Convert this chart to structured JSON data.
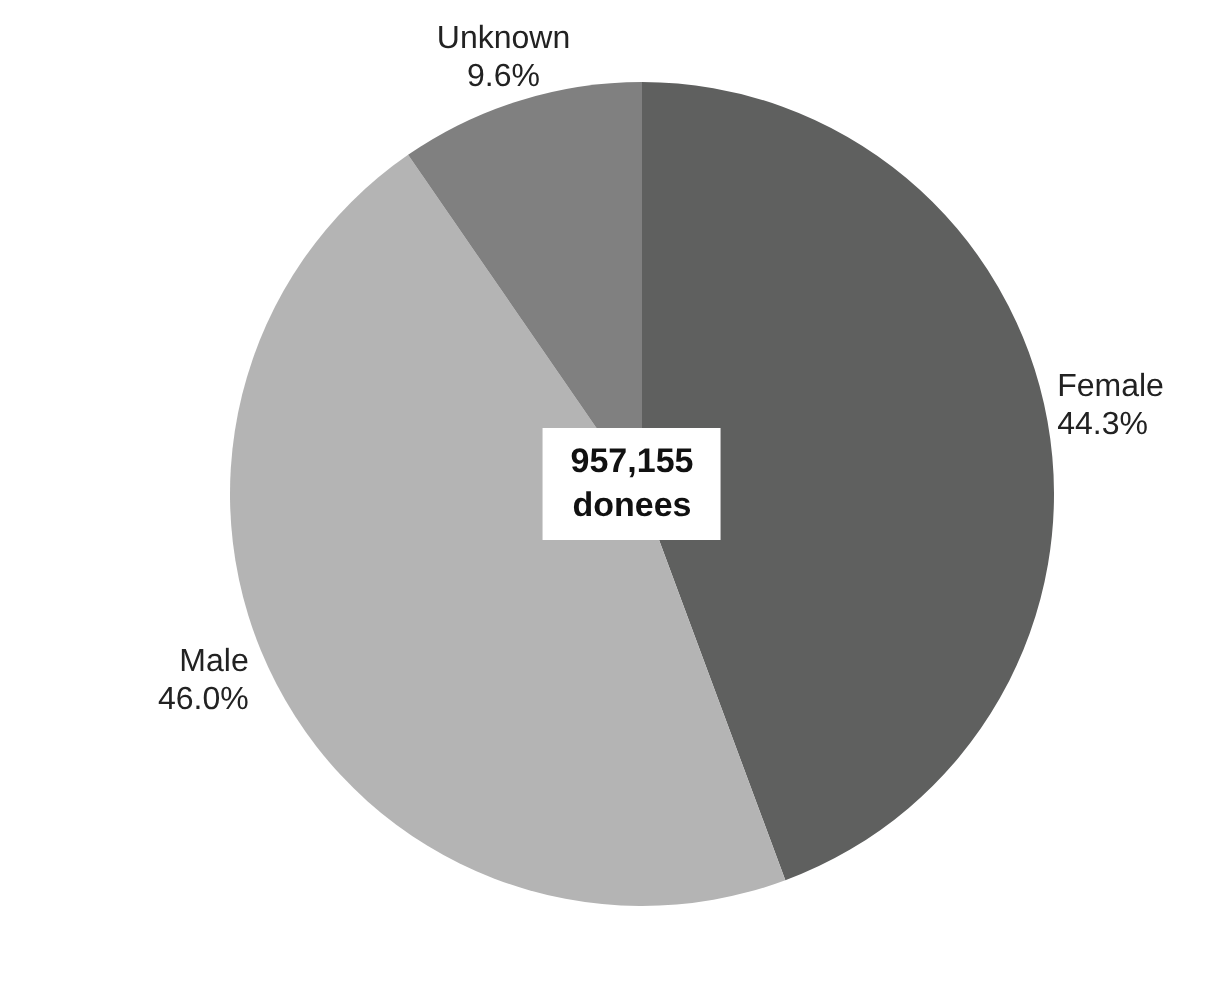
{
  "chart_data": {
    "type": "pie",
    "categories": [
      "Female",
      "Male",
      "Unknown"
    ],
    "values": [
      44.3,
      46.0,
      9.6
    ],
    "colors": [
      "#5f605f",
      "#b4b4b4",
      "#808080"
    ],
    "value_labels": [
      "44.3%",
      "46.0%",
      "9.6%"
    ],
    "annotations": [
      "957,155\ndonees"
    ],
    "legend": false
  }
}
